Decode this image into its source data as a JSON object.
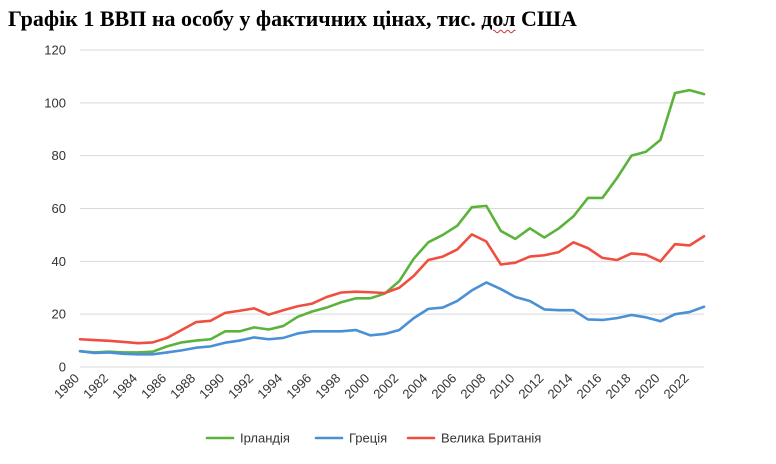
{
  "chart_data": {
    "type": "line",
    "title": {
      "before": "Графік 1 ВВП на особу у фактичних цінах, тис. ",
      "underlined": "дол",
      "after": " США"
    },
    "xlabel": "",
    "ylabel": "",
    "x": [
      1980,
      1981,
      1982,
      1983,
      1984,
      1985,
      1986,
      1987,
      1988,
      1989,
      1990,
      1991,
      1992,
      1993,
      1994,
      1995,
      1996,
      1997,
      1998,
      1999,
      2000,
      2001,
      2002,
      2003,
      2004,
      2005,
      2006,
      2007,
      2008,
      2009,
      2010,
      2011,
      2012,
      2013,
      2014,
      2015,
      2016,
      2017,
      2018,
      2019,
      2020,
      2021,
      2022,
      2023
    ],
    "x_tick_labels": [
      "1980",
      "1982",
      "1984",
      "1986",
      "1988",
      "1990",
      "1992",
      "1994",
      "1996",
      "1998",
      "2000",
      "2002",
      "2004",
      "2006",
      "2008",
      "2010",
      "2012",
      "2014",
      "2016",
      "2018",
      "2020",
      "2022"
    ],
    "y_tick_labels": [
      "0",
      "20",
      "40",
      "60",
      "80",
      "100",
      "120"
    ],
    "ylim": [
      0,
      120
    ],
    "grid": "horizontal",
    "legend_position": "bottom",
    "series": [
      {
        "name": "Ірландія",
        "color": "#5cb33c",
        "values": [
          6.0,
          5.5,
          5.8,
          5.5,
          5.5,
          5.8,
          7.8,
          9.3,
          10.0,
          10.5,
          13.5,
          13.5,
          15.0,
          14.2,
          15.5,
          19.0,
          21.0,
          22.5,
          24.5,
          26.0,
          26.0,
          27.8,
          32.5,
          41.0,
          47.2,
          50.0,
          53.5,
          60.5,
          61.0,
          51.5,
          48.5,
          52.5,
          49.0,
          52.5,
          57.0,
          64.0,
          64.0,
          71.5,
          80.0,
          81.5,
          86.0,
          103.7,
          104.8,
          103.3
        ]
      },
      {
        "name": "Греція",
        "color": "#4a90d6",
        "values": [
          6.0,
          5.3,
          5.5,
          5.0,
          4.8,
          4.8,
          5.5,
          6.3,
          7.3,
          7.8,
          9.2,
          10.0,
          11.2,
          10.5,
          11.0,
          12.7,
          13.5,
          13.5,
          13.5,
          14.0,
          12.0,
          12.5,
          14.0,
          18.5,
          22.0,
          22.5,
          25.0,
          29.0,
          32.0,
          29.5,
          26.5,
          25.0,
          21.8,
          21.5,
          21.5,
          18.0,
          17.8,
          18.5,
          19.7,
          18.8,
          17.3,
          20.0,
          20.8,
          22.8
        ]
      },
      {
        "name": "Велика Британія",
        "color": "#f04e3e",
        "values": [
          10.5,
          10.2,
          9.9,
          9.5,
          9.0,
          9.3,
          11.0,
          14.0,
          17.0,
          17.5,
          20.5,
          21.3,
          22.2,
          19.8,
          21.5,
          23.0,
          24.0,
          26.5,
          28.2,
          28.5,
          28.3,
          28.0,
          30.0,
          34.5,
          40.5,
          41.8,
          44.5,
          50.2,
          47.5,
          38.8,
          39.5,
          41.8,
          42.3,
          43.5,
          47.2,
          45.0,
          41.3,
          40.5,
          43.0,
          42.5,
          40.0,
          46.5,
          46.0,
          49.5
        ]
      }
    ]
  }
}
